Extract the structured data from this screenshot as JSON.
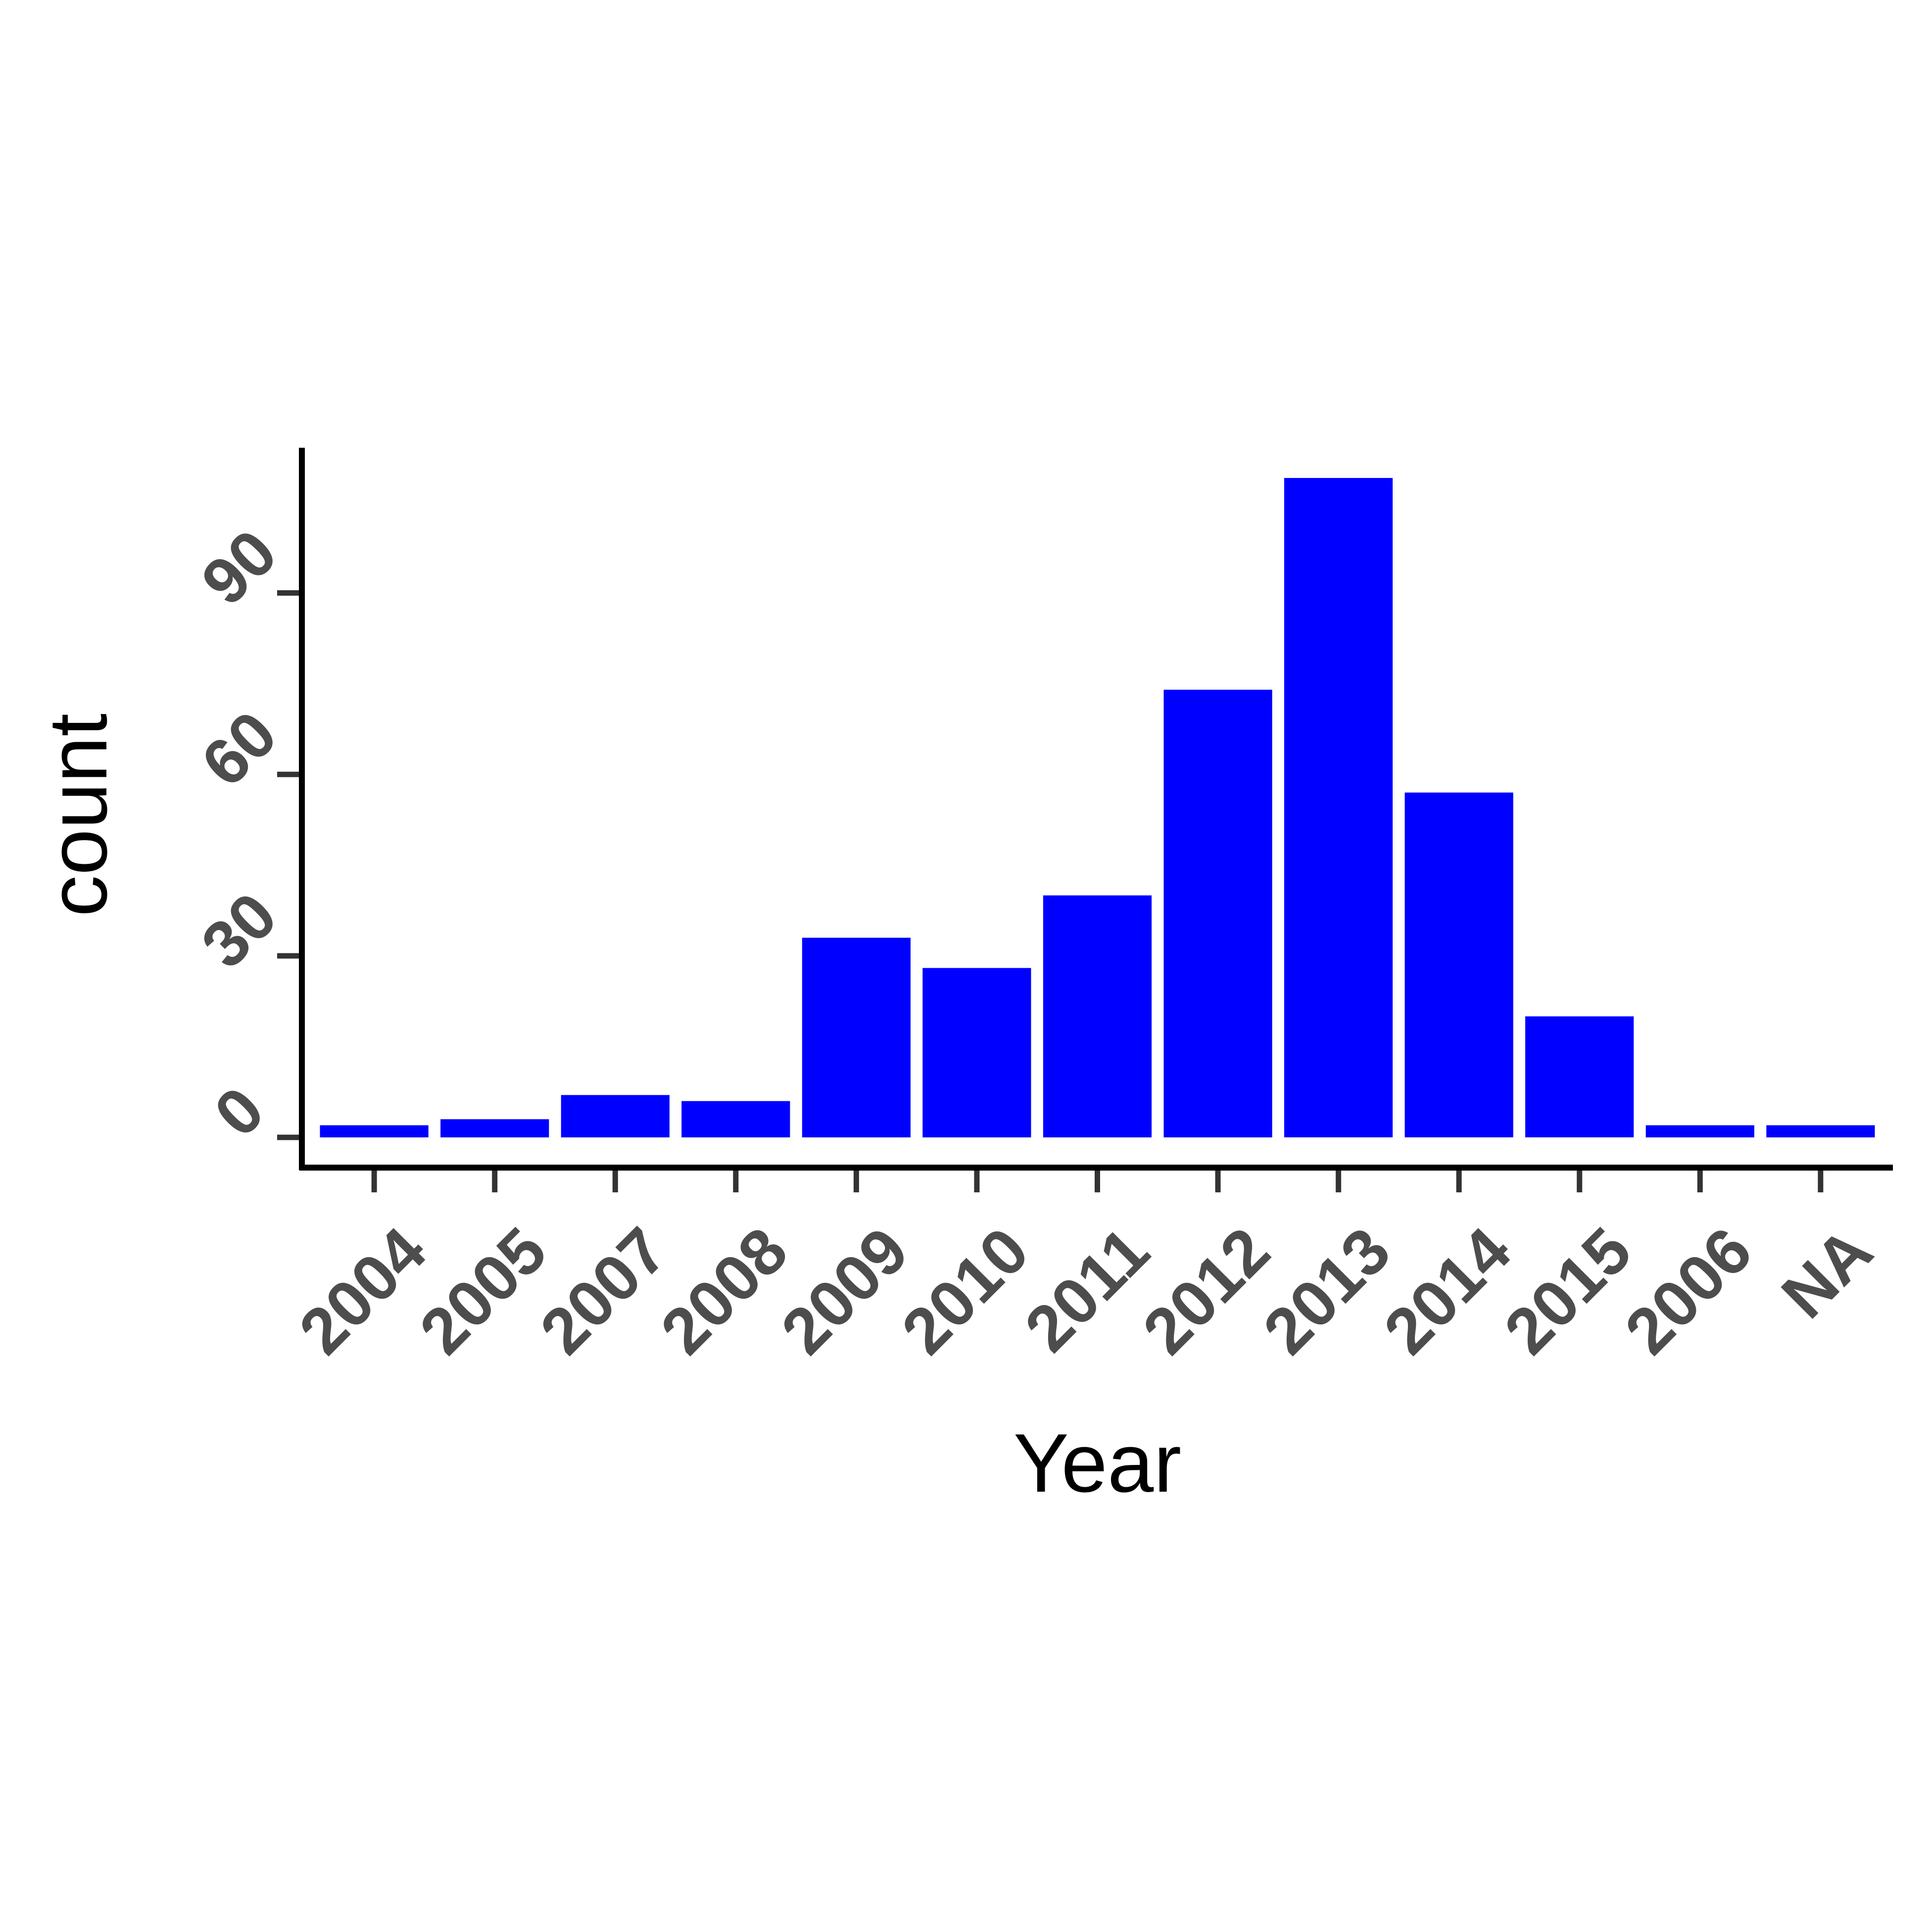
{
  "chart_data": {
    "type": "bar",
    "xlabel": "Year",
    "ylabel": "count",
    "categories": [
      "2004",
      "2005",
      "2007",
      "2008",
      "2009",
      "2010",
      "2011",
      "2012",
      "2013",
      "2014",
      "2015",
      "2006",
      "NA"
    ],
    "values": [
      2,
      3,
      7,
      6,
      33,
      28,
      40,
      74,
      109,
      57,
      20,
      2,
      2
    ],
    "ylim": [
      -5,
      114
    ],
    "yticks": [
      0,
      30,
      60,
      90
    ],
    "bar_color": "#0000FF",
    "axis_color": "#000000",
    "tick_color": "#333333",
    "tick_label_color": "#4D4D4D",
    "grid": false,
    "legend": "none"
  }
}
